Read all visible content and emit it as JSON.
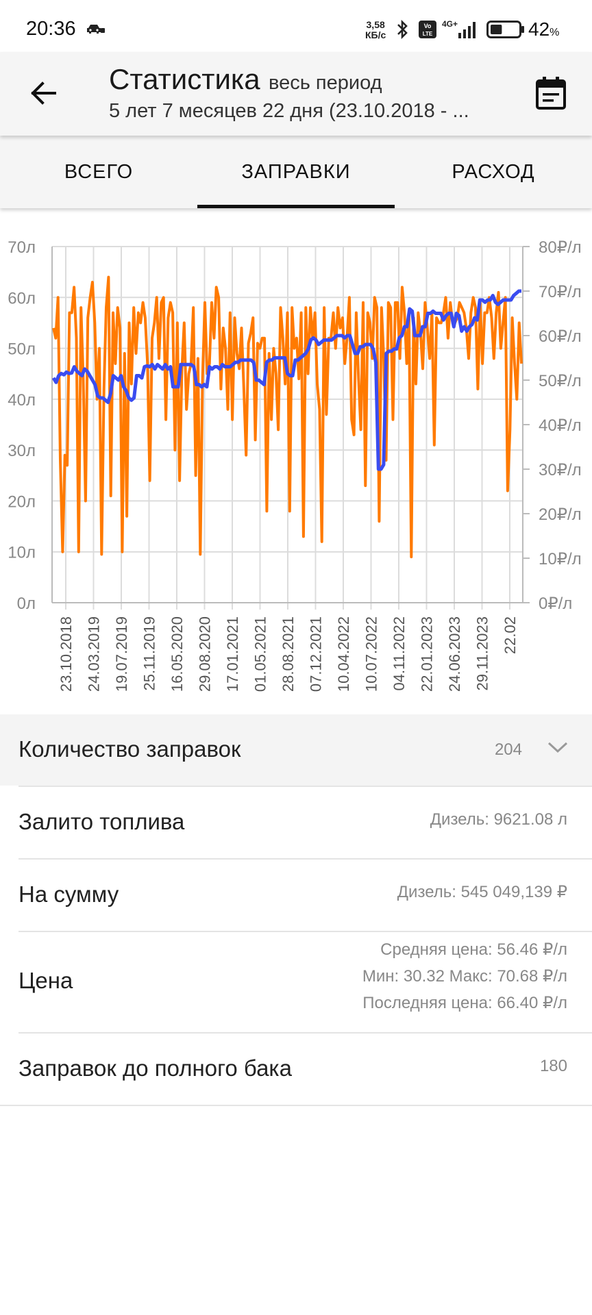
{
  "status_bar": {
    "time": "20:36",
    "speed_value": "3,58",
    "speed_unit": "КБ/с",
    "network": "4G+",
    "volte": "Vo LTE",
    "battery_pct": "42",
    "battery_unit": "%",
    "battery_level": 0.42
  },
  "header": {
    "title": "Статистика",
    "period": "весь период",
    "subtitle": "5 лет 7 месяцев 22 дня (23.10.2018 - ..."
  },
  "tabs": [
    {
      "label": "ВСЕГО",
      "selected": false
    },
    {
      "label": "ЗАПРАВКИ",
      "selected": true
    },
    {
      "label": "РАСХОД",
      "selected": false
    }
  ],
  "chart_data": {
    "type": "line",
    "grid": true,
    "left_axis": {
      "unit": "л",
      "ticks": [
        "0л",
        "10л",
        "20л",
        "30л",
        "40л",
        "50л",
        "60л",
        "70л"
      ],
      "range": [
        0,
        70
      ]
    },
    "right_axis": {
      "unit": "₽/л",
      "ticks": [
        "0₽/л",
        "10₽/л",
        "20₽/л",
        "30₽/л",
        "40₽/л",
        "50₽/л",
        "60₽/л",
        "70₽/л",
        "80₽/л"
      ],
      "range": [
        0,
        80
      ]
    },
    "x_tick_labels": [
      "23.10.2018",
      "24.03.2019",
      "19.07.2019",
      "25.11.2019",
      "16.05.2020",
      "29.08.2020",
      "17.01.2021",
      "01.05.2021",
      "28.08.2021",
      "07.12.2021",
      "10.04.2022",
      "10.07.2022",
      "04.11.2022",
      "22.01.2023",
      "24.06.2023",
      "29.11.2023",
      "22.02"
    ],
    "series": [
      {
        "axis": "left",
        "color": "#ff7a00",
        "values": [
          54,
          52,
          60,
          28,
          10,
          29,
          27,
          57,
          57,
          62,
          52,
          10,
          58,
          44,
          20,
          56,
          60,
          63,
          55,
          40,
          50,
          9.5,
          42,
          58,
          64,
          21,
          57,
          47,
          58,
          54,
          10,
          49,
          17,
          55,
          43,
          58,
          49,
          57,
          55,
          59,
          56,
          47,
          24,
          52,
          55,
          60,
          48,
          59,
          60,
          36,
          56,
          59,
          57,
          30,
          55,
          24,
          46,
          55,
          38,
          45,
          47,
          58,
          25,
          48,
          9.5,
          44,
          59,
          45,
          47,
          59,
          52,
          62,
          60,
          42,
          54,
          50,
          38,
          57,
          36,
          56,
          49,
          46,
          54,
          42,
          29,
          51,
          53,
          56,
          32,
          51,
          50,
          52,
          52,
          18,
          49,
          36,
          50,
          45,
          34,
          58,
          52,
          43,
          57,
          18,
          58,
          50,
          52,
          44,
          57,
          13,
          58,
          45,
          58,
          52,
          57,
          43,
          38,
          12,
          58,
          37,
          52,
          52,
          57,
          50,
          58,
          54,
          56,
          47,
          52,
          60,
          36,
          33,
          57,
          44,
          34,
          59,
          23,
          57,
          55,
          48,
          60,
          58,
          16,
          58,
          48,
          28,
          59,
          58,
          36,
          59,
          59,
          48,
          62,
          57,
          47,
          57,
          9,
          56,
          43,
          57,
          53,
          46,
          59,
          54,
          48,
          57,
          31,
          56,
          55,
          55,
          57,
          60,
          52,
          59,
          55,
          55,
          56,
          59,
          58,
          57,
          54,
          48,
          57,
          60,
          58,
          42,
          59,
          47,
          57,
          57,
          60,
          56,
          48,
          57,
          61,
          50,
          55,
          60,
          22,
          34,
          56,
          47,
          40,
          55,
          47
        ]
      },
      {
        "axis": "right",
        "color": "#3a4cf0",
        "values": [
          50.5,
          49.5,
          51,
          51.5,
          51.2,
          51.8,
          51.5,
          51.6,
          53,
          52,
          51.5,
          51,
          52.5,
          52,
          51,
          50,
          49,
          46.5,
          46,
          46,
          45.5,
          45,
          47,
          51,
          50.5,
          50,
          51,
          48.5,
          47.6,
          46,
          45.5,
          46,
          51,
          51,
          50.5,
          53,
          53.2,
          53,
          53.5,
          52.5,
          53.5,
          53,
          52.5,
          53.5,
          52.5,
          53,
          48.5,
          48.5,
          48.5,
          53.5,
          53.5,
          53.5,
          53.5,
          53.5,
          53,
          49,
          49,
          48.5,
          49,
          48.5,
          53,
          52.5,
          53,
          53,
          52.5,
          53.5,
          53,
          53,
          53,
          53.5,
          54,
          54,
          54.5,
          54.5,
          54.5,
          54.5,
          54.5,
          54,
          50,
          50,
          49.5,
          49,
          54,
          54.5,
          54.5,
          55,
          55,
          55,
          55,
          55,
          51.5,
          51,
          51,
          54.5,
          54.5,
          55,
          55.5,
          56,
          57,
          59,
          59.5,
          59,
          58,
          58.5,
          59,
          59,
          59,
          59,
          59.5,
          60,
          60,
          60,
          59.5,
          60,
          60,
          58,
          56,
          56,
          57.5,
          57.5,
          58,
          58,
          58,
          57,
          54,
          30,
          30,
          31,
          56,
          56.5,
          56.5,
          57,
          57,
          59.5,
          60,
          62,
          62,
          66,
          65.5,
          60,
          60,
          60,
          62,
          62,
          65,
          65,
          65.5,
          65,
          65,
          65,
          63.5,
          64.5,
          65,
          65,
          62,
          65,
          64.5,
          61,
          62,
          61,
          62,
          62.5,
          64,
          63.5,
          68,
          68,
          67.5,
          68,
          68,
          69,
          67.5,
          67,
          67.5,
          68,
          68,
          68,
          68,
          69,
          69.5,
          70,
          70
        ]
      }
    ]
  },
  "stats": {
    "refuel_count_label": "Количество заправок",
    "refuel_count_value": "204",
    "fuel_label": "Залито топлива",
    "fuel_value": "Дизель: 9621.08 л",
    "sum_label": "На сумму",
    "sum_value": "Дизель: 545 049,139 ₽",
    "price_label": "Цена",
    "price_avg": "Средняя цена: 56.46 ₽/л",
    "price_minmax": "Мин: 30.32 Макс: 70.68 ₽/л",
    "price_last": "Последняя цена: 66.40 ₽/л",
    "full_tank_label": "Заправок до полного бака",
    "full_tank_value": "180"
  }
}
